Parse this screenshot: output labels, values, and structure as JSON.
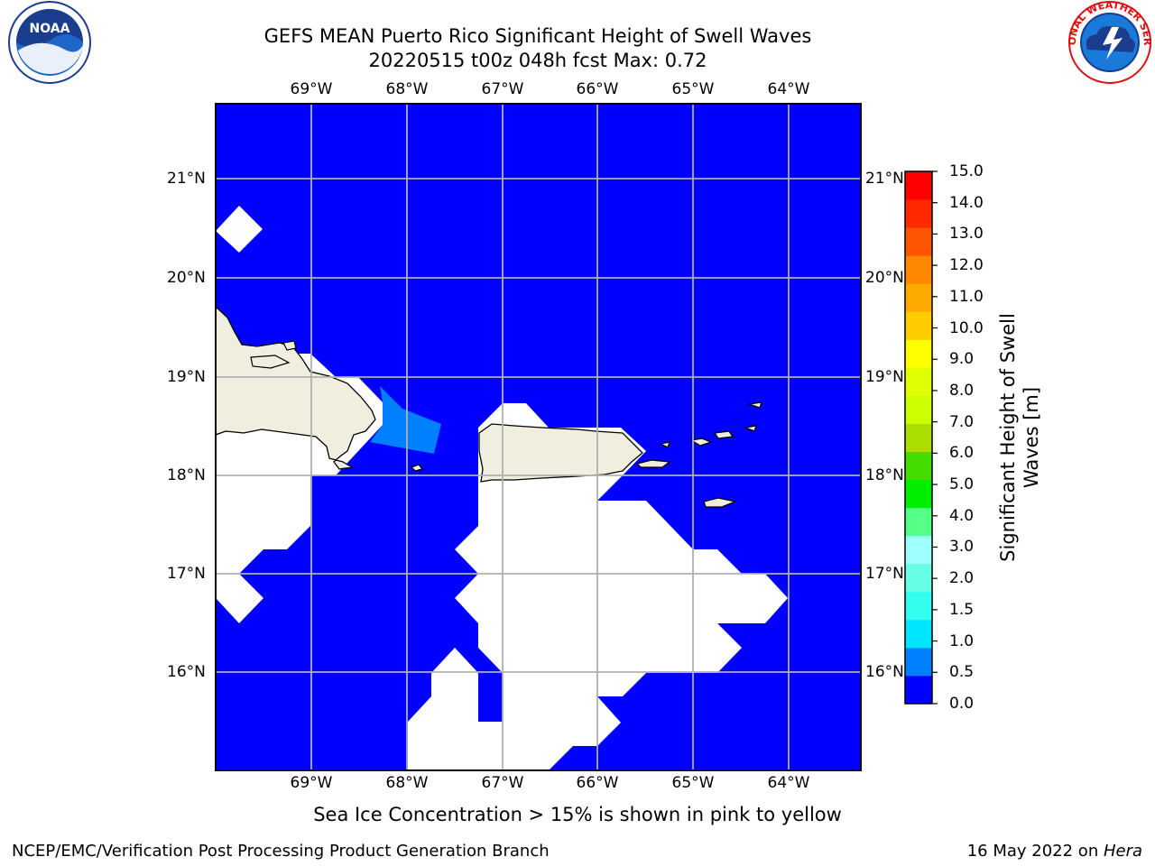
{
  "title_line1": "GEFS MEAN Puerto Rico Significant Height of Swell Waves",
  "title_line2": "20220515 t00z 048h fcst   Max: 0.72",
  "lon_labels": [
    "69°W",
    "68°W",
    "67°W",
    "66°W",
    "65°W",
    "64°W"
  ],
  "lat_labels": [
    "21°N",
    "20°N",
    "19°N",
    "18°N",
    "17°N",
    "16°N"
  ],
  "colorbar": {
    "label_line1": "Significant Height of Swell",
    "label_line2": "Waves [m]",
    "ticks": [
      "15.0",
      "14.0",
      "13.0",
      "12.0",
      "11.0",
      "10.0",
      "9.0",
      "8.0",
      "7.0",
      "6.0",
      "5.0",
      "4.0",
      "3.0",
      "2.0",
      "1.5",
      "1.0",
      "0.5",
      "0.0"
    ],
    "colors_bottom_to_top": [
      "#0000ff",
      "#0080ff",
      "#00e5ff",
      "#33ffee",
      "#66ffe5",
      "#a0ffff",
      "#55ff88",
      "#00ee00",
      "#44dd00",
      "#aadd00",
      "#ccff00",
      "#e0ff00",
      "#ffff00",
      "#ffcc00",
      "#ffaa00",
      "#ff8800",
      "#ff5500",
      "#ff2a00",
      "#ff0000"
    ]
  },
  "colors": {
    "ocean": "#0000ff",
    "swell_band": "#0080ff",
    "land": "#f0efdf",
    "no_data": "#ffffff",
    "grid": "#b0b0b0"
  },
  "caption": "Sea Ice Concentration > 15% is shown in pink to yellow",
  "footer_left": "NCEP/EMC/Verification Post Processing Product Generation Branch",
  "footer_date": "16 May 2022 on ",
  "footer_host": "Hera",
  "logos": {
    "left": "noaa-logo",
    "left_text": "NOAA",
    "right": "nws-logo",
    "right_text": "NATIONAL WEATHER SERVICE"
  }
}
